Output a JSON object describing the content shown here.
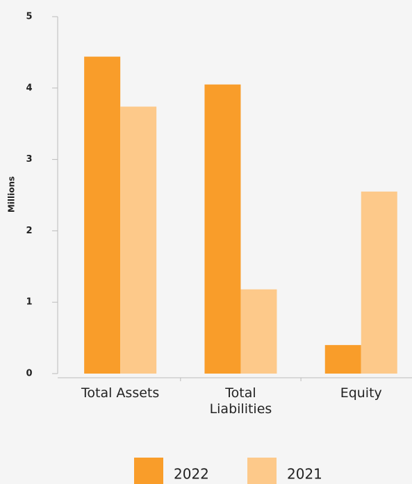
{
  "chart_data": {
    "type": "bar",
    "y_label": "Millions",
    "categories": [
      "Total Assets",
      "Total Liabilities",
      "Equity"
    ],
    "series": [
      {
        "name": "2022",
        "color": "#f99d2a",
        "values": [
          4.44,
          4.05,
          0.4
        ]
      },
      {
        "name": "2021",
        "color": "#fdc98a",
        "values": [
          3.74,
          1.18,
          2.55
        ]
      }
    ],
    "ylim": [
      0,
      5
    ],
    "yticks": [
      0,
      1,
      2,
      3,
      4,
      5
    ],
    "grid": false,
    "legend": "bottom"
  }
}
